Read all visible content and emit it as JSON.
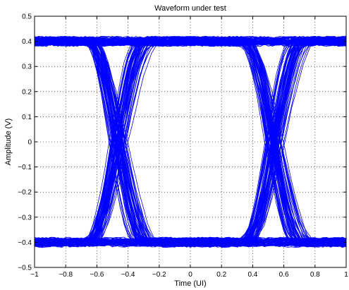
{
  "chart_data": {
    "type": "line",
    "subtype": "eye-diagram",
    "title": "Waveform under test",
    "xlabel": "Time (UI)",
    "ylabel": "Amplitude (V)",
    "xlim": [
      -1,
      1
    ],
    "ylim": [
      -0.5,
      0.5
    ],
    "xticks": [
      -1,
      -0.8,
      -0.6,
      -0.4,
      -0.2,
      0,
      0.2,
      0.4,
      0.6,
      0.8,
      1
    ],
    "xtick_labels": [
      "−1",
      "−0.8",
      "−0.6",
      "−0.4",
      "−0.2",
      "0",
      "0.2",
      "0.4",
      "0.6",
      "0.8",
      "1"
    ],
    "yticks": [
      -0.5,
      -0.4,
      -0.3,
      -0.2,
      -0.1,
      0,
      0.1,
      0.2,
      0.3,
      0.4,
      0.5
    ],
    "ytick_labels": [
      "−0.5",
      "−0.4",
      "−0.3",
      "−0.2",
      "−0.1",
      "0",
      "0.1",
      "0.2",
      "0.3",
      "0.4",
      "0.5"
    ],
    "grid": true,
    "series_color": "#0000ff",
    "levels": [
      -0.4,
      0.4
    ],
    "eye_crossing_times": [
      -0.65,
      0.35
    ],
    "eye_centers": [
      -0.85,
      0.15,
      0.95
    ],
    "inner_eye_opening": [
      -0.05,
      0.05
    ],
    "trace_count": 240
  }
}
